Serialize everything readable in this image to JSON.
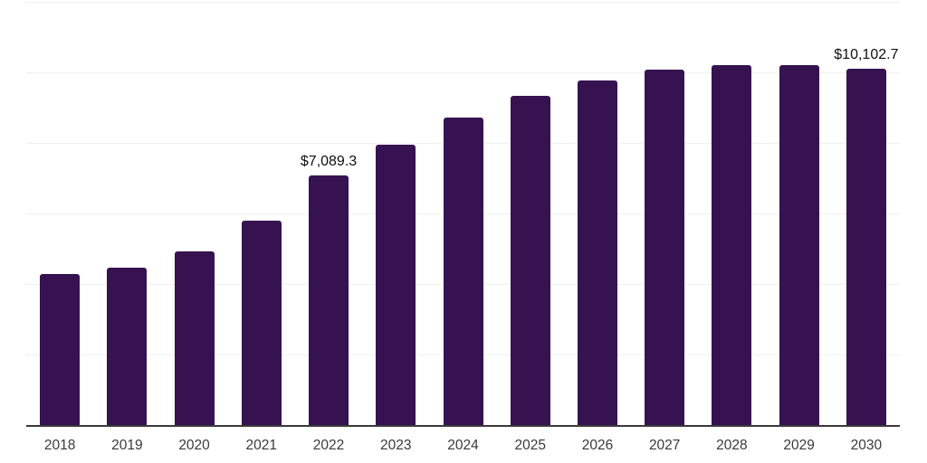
{
  "chart": {
    "background_color": "#ffffff",
    "bar_color": "#361350",
    "axis_line_color": "#3a3a3a",
    "gridline_color": "#f0f0f0",
    "tick_label_color": "#3a3a3a",
    "data_label_color": "#0f0f0f"
  },
  "chart_data": {
    "type": "bar",
    "title": "",
    "xlabel": "",
    "ylabel": "",
    "categories": [
      "2018",
      "2019",
      "2020",
      "2021",
      "2022",
      "2023",
      "2024",
      "2025",
      "2026",
      "2027",
      "2028",
      "2029",
      "2030"
    ],
    "values": [
      4270,
      4460,
      4920,
      5790,
      7089.3,
      7950,
      8720,
      9330,
      9770,
      10080,
      10200,
      10200,
      10102.7
    ],
    "labeled_points": {
      "2022": "$7,089.3",
      "2030": "$10,102.7"
    },
    "ylim": [
      0,
      12000
    ],
    "gridline_step": 2000,
    "grid": true,
    "legend": false,
    "y_axis_labels_visible": false
  }
}
